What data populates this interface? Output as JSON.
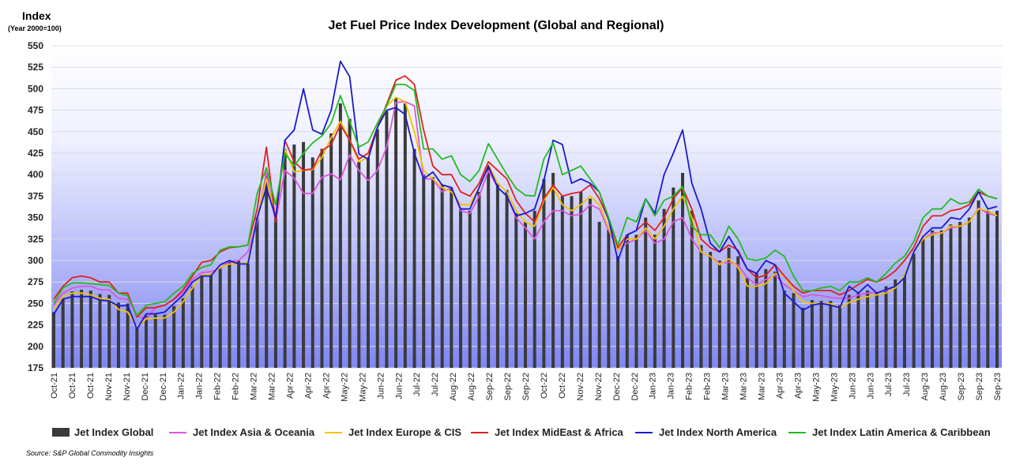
{
  "title": "Jet Fuel Price Index Development (Global and Regional)",
  "yaxis_title": "Index",
  "yaxis_subtitle": "(Year 2000=100)",
  "source": "Source: S&P Global Commodity Insights",
  "legend": [
    {
      "name": "Jet Index Global",
      "kind": "bar",
      "color": "#3a3a3a"
    },
    {
      "name": "Jet Index Asia & Oceania",
      "kind": "line",
      "color": "#dd55dd"
    },
    {
      "name": "Jet Index Europe & CIS",
      "kind": "line",
      "color": "#f2c200"
    },
    {
      "name": "Jet Index MidEast & Africa",
      "kind": "line",
      "color": "#e02020"
    },
    {
      "name": "Jet Index North America",
      "kind": "line",
      "color": "#1a1acc"
    },
    {
      "name": "Jet Index Latin America & Caribbean",
      "kind": "line",
      "color": "#22bb22"
    }
  ],
  "chart_data": {
    "type": "bar",
    "title": "Jet Fuel Price Index Development (Global and Regional)",
    "ylabel": "Index",
    "ylim": [
      175,
      550
    ],
    "yticks": [
      175,
      200,
      225,
      250,
      275,
      300,
      325,
      350,
      375,
      400,
      425,
      450,
      475,
      500,
      525,
      550
    ],
    "grid": true,
    "legend_position": "bottom",
    "tick_labels": [
      "Oct-21",
      "Oct-21",
      "Oct-21",
      "Nov-21",
      "Nov-21",
      "Dec-21",
      "Dec-21",
      "Jan-22",
      "Jan-22",
      "Feb-22",
      "Feb-22",
      "Mar-22",
      "Mar-22",
      "Apr-22",
      "Apr-22",
      "Apr-22",
      "May-22",
      "May-22",
      "Jun-22",
      "Jun-22",
      "Jul-22",
      "Jul-22",
      "Aug-22",
      "Aug-22",
      "Sep-22",
      "Sep-22",
      "Sep-22",
      "Oct-22",
      "Oct-22",
      "Nov-22",
      "Nov-22",
      "Dec-22",
      "Dec-22",
      "Jan-23",
      "Jan-23",
      "Feb-23",
      "Feb-23",
      "Mar-23",
      "Mar-23",
      "Mar-23",
      "Apr-23",
      "Apr-23",
      "May-23",
      "May-23",
      "Jun-23",
      "Jun-23",
      "Jul-23",
      "Jul-23",
      "Aug-23",
      "Aug-23",
      "Sep-23",
      "Sep-23",
      "Sep-23"
    ],
    "series": [
      {
        "name": "Jet Index Global",
        "kind": "bar",
        "color": "#3a3a3a",
        "values": [
          240,
          256,
          264,
          266,
          265,
          261,
          260,
          251,
          250,
          222,
          236,
          237,
          237,
          247,
          256,
          270,
          283,
          283,
          291,
          299,
          300,
          296,
          350,
          401,
          350,
          430,
          435,
          438,
          420,
          430,
          448,
          483,
          465,
          415,
          420,
          453,
          474,
          489,
          483,
          430,
          400,
          397,
          388,
          385,
          360,
          358,
          380,
          410,
          390,
          382,
          355,
          345,
          358,
          395,
          402,
          375,
          375,
          380,
          372,
          345,
          336,
          305,
          330,
          330,
          350,
          330,
          360,
          385,
          402,
          358,
          318,
          310,
          300,
          315,
          305,
          280,
          285,
          290,
          287,
          265,
          262,
          245,
          254,
          253,
          253,
          248,
          260,
          262,
          265,
          262,
          270,
          278,
          283,
          308,
          325,
          335,
          335,
          342,
          345,
          350,
          370,
          358,
          358
        ]
      },
      {
        "name": "Jet Index Asia & Oceania",
        "kind": "line",
        "color": "#dd55dd",
        "values": [
          248,
          262,
          268,
          270,
          270,
          266,
          266,
          256,
          255,
          236,
          232,
          246,
          248,
          255,
          263,
          278,
          286,
          287,
          291,
          299,
          300,
          310,
          345,
          403,
          345,
          405,
          396,
          378,
          378,
          397,
          401,
          394,
          423,
          405,
          393,
          405,
          432,
          484,
          485,
          480,
          395,
          395,
          380,
          385,
          358,
          355,
          375,
          405,
          385,
          375,
          350,
          338,
          325,
          345,
          358,
          358,
          352,
          354,
          365,
          360,
          335,
          312,
          320,
          325,
          335,
          320,
          325,
          345,
          350,
          325,
          310,
          305,
          297,
          298,
          295,
          280,
          272,
          278,
          283,
          272,
          265,
          258,
          260,
          259,
          257,
          256,
          256,
          260,
          262,
          263,
          265,
          270,
          281,
          310,
          325,
          332,
          332,
          338,
          340,
          345,
          361,
          355,
          352
        ]
      },
      {
        "name": "Jet Index Europe & CIS",
        "kind": "line",
        "color": "#f2c200",
        "values": [
          243,
          258,
          262,
          262,
          260,
          256,
          255,
          243,
          240,
          222,
          232,
          233,
          233,
          240,
          252,
          268,
          283,
          284,
          292,
          296,
          296,
          298,
          350,
          395,
          350,
          430,
          403,
          405,
          406,
          420,
          443,
          462,
          440,
          415,
          420,
          455,
          480,
          490,
          485,
          450,
          405,
          395,
          385,
          380,
          365,
          365,
          385,
          412,
          390,
          380,
          358,
          345,
          340,
          370,
          385,
          365,
          358,
          365,
          375,
          365,
          338,
          312,
          325,
          325,
          338,
          325,
          340,
          360,
          375,
          350,
          310,
          305,
          295,
          302,
          292,
          270,
          270,
          273,
          285,
          282,
          265,
          252,
          250,
          250,
          250,
          245,
          251,
          255,
          258,
          260,
          262,
          268,
          283,
          310,
          325,
          330,
          332,
          340,
          340,
          345,
          360,
          358,
          352
        ]
      },
      {
        "name": "Jet Index MidEast & Africa",
        "kind": "line",
        "color": "#e02020",
        "values": [
          255,
          270,
          280,
          282,
          280,
          275,
          275,
          262,
          262,
          234,
          245,
          245,
          248,
          255,
          266,
          282,
          298,
          300,
          310,
          315,
          316,
          318,
          360,
          432,
          345,
          440,
          415,
          405,
          407,
          428,
          435,
          458,
          440,
          418,
          425,
          455,
          482,
          510,
          515,
          505,
          452,
          410,
          400,
          400,
          380,
          375,
          390,
          415,
          405,
          395,
          370,
          355,
          345,
          372,
          388,
          375,
          378,
          380,
          388,
          372,
          348,
          315,
          330,
          335,
          345,
          335,
          350,
          372,
          385,
          360,
          325,
          315,
          310,
          318,
          312,
          290,
          280,
          283,
          295,
          282,
          270,
          262,
          265,
          265,
          265,
          260,
          265,
          272,
          278,
          275,
          280,
          288,
          300,
          315,
          340,
          352,
          352,
          358,
          360,
          365,
          380,
          375,
          372
        ]
      },
      {
        "name": "Jet Index North America",
        "kind": "line",
        "color": "#1a1acc",
        "values": [
          237,
          255,
          258,
          258,
          258,
          254,
          253,
          247,
          248,
          220,
          238,
          238,
          240,
          250,
          260,
          275,
          282,
          282,
          295,
          300,
          296,
          296,
          350,
          385,
          350,
          440,
          452,
          500,
          452,
          447,
          475,
          532,
          514,
          424,
          418,
          455,
          475,
          478,
          470,
          425,
          395,
          403,
          388,
          385,
          360,
          360,
          385,
          410,
          385,
          375,
          352,
          355,
          360,
          393,
          440,
          435,
          390,
          395,
          390,
          380,
          348,
          300,
          330,
          335,
          372,
          355,
          400,
          425,
          452,
          390,
          360,
          320,
          310,
          328,
          310,
          290,
          285,
          300,
          295,
          262,
          252,
          242,
          248,
          250,
          248,
          245,
          270,
          262,
          272,
          262,
          266,
          270,
          280,
          310,
          328,
          338,
          338,
          350,
          348,
          360,
          380,
          360,
          363
        ]
      },
      {
        "name": "Jet Index Latin America & Caribbean",
        "kind": "line",
        "color": "#22bb22",
        "values": [
          250,
          268,
          274,
          274,
          273,
          272,
          271,
          262,
          259,
          236,
          248,
          250,
          252,
          262,
          270,
          285,
          292,
          295,
          312,
          316,
          316,
          318,
          378,
          408,
          365,
          425,
          410,
          425,
          437,
          445,
          460,
          492,
          462,
          432,
          438,
          460,
          480,
          505,
          505,
          498,
          430,
          430,
          418,
          422,
          400,
          392,
          405,
          436,
          418,
          400,
          384,
          376,
          375,
          418,
          437,
          400,
          405,
          410,
          395,
          380,
          350,
          318,
          350,
          345,
          372,
          352,
          370,
          375,
          386,
          340,
          330,
          330,
          315,
          340,
          325,
          302,
          300,
          303,
          312,
          305,
          282,
          265,
          265,
          268,
          270,
          265,
          275,
          275,
          280,
          275,
          285,
          297,
          305,
          322,
          350,
          360,
          360,
          372,
          366,
          368,
          383,
          375,
          372
        ]
      }
    ]
  }
}
